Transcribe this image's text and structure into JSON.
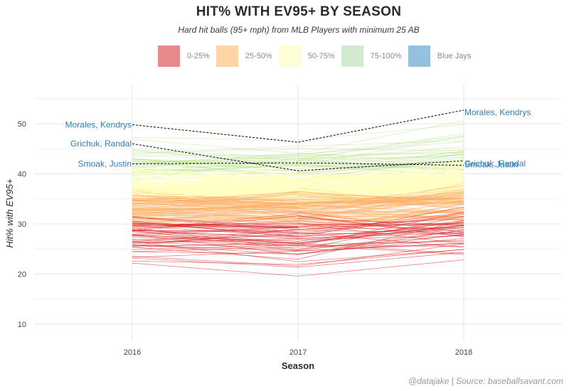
{
  "title": "HIT% WITH EV95+ BY SEASON",
  "subtitle": "Hard hit balls (95+ mph) from MLB Players with minimum 25 AB",
  "caption": "@datajake | Source: baseballsavant.com",
  "legend": [
    {
      "label": "0-25%",
      "color": "#e8898b"
    },
    {
      "label": "25-50%",
      "color": "#fdd4a6"
    },
    {
      "label": "50-75%",
      "color": "#fefed4"
    },
    {
      "label": "75-100%",
      "color": "#d2ead0"
    },
    {
      "label": "Blue Jays",
      "color": "#93c1de"
    }
  ],
  "chart_data": {
    "type": "line",
    "title": "HIT% WITH EV95+ BY SEASON",
    "subtitle": "Hard hit balls (95+ mph) from MLB Players with minimum 25 AB",
    "xlabel": "Season",
    "ylabel": "Hit% with EV95+",
    "x": [
      "2016",
      "2017",
      "2018"
    ],
    "ylim": [
      7,
      57
    ],
    "yticks": [
      10,
      20,
      30,
      40,
      50
    ],
    "grid": true,
    "legend_position": "top",
    "quartile_colors": {
      "0-25%": "#d7191c",
      "25-50%": "#fdae61",
      "50-75%": "#ffffbf",
      "75-100%": "#a6d96a"
    },
    "highlight_series": [
      {
        "name": "Morales, Kendrys",
        "values": [
          49.8,
          46.3,
          52.7
        ]
      },
      {
        "name": "Grichuk, Randal",
        "values": [
          46.0,
          40.6,
          42.6
        ]
      },
      {
        "name": "Smoak, Justin",
        "values": [
          42.0,
          42.2,
          41.7
        ]
      }
    ],
    "background_series_note": "Several hundred faint player lines colored by quartile of Hit% with EV95+"
  }
}
